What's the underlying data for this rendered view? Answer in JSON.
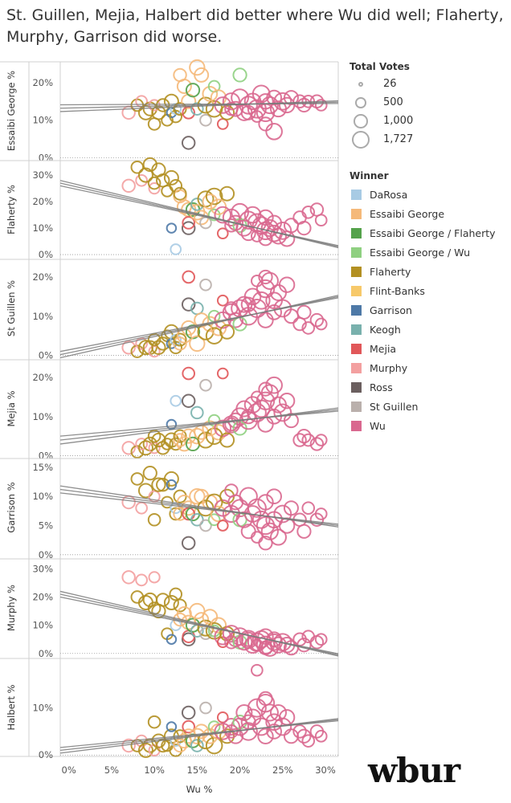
{
  "title": "St. Guillen, Mejia, Halbert did better where Wu did well; Flaherty, Murphy, Garrison did worse.",
  "brand": "wbur",
  "legend": {
    "size_title": "Total Votes",
    "sizes": [
      {
        "label": "26",
        "value": 26
      },
      {
        "label": "500",
        "value": 500
      },
      {
        "label": "1,000",
        "value": 1000
      },
      {
        "label": "1,727",
        "value": 1727
      }
    ],
    "winner_title": "Winner",
    "winners": [
      {
        "name": "DaRosa",
        "color": "#a8cbe4"
      },
      {
        "name": "Essaibi George",
        "color": "#f5b97a"
      },
      {
        "name": "Essaibi George / Flaherty",
        "color": "#54a24b"
      },
      {
        "name": "Essaibi George / Wu",
        "color": "#8fd081"
      },
      {
        "name": "Flaherty",
        "color": "#b39022"
      },
      {
        "name": "Flint-Banks",
        "color": "#f7c96a"
      },
      {
        "name": "Garrison",
        "color": "#4e79a7"
      },
      {
        "name": "Keogh",
        "color": "#79b1ad"
      },
      {
        "name": "Mejia",
        "color": "#e15759"
      },
      {
        "name": "Murphy",
        "color": "#f3a0a0"
      },
      {
        "name": "Ross",
        "color": "#6b5f5f"
      },
      {
        "name": "St Guillen",
        "color": "#bab0ac"
      },
      {
        "name": "Wu",
        "color": "#d9688f"
      }
    ]
  },
  "chart_data": {
    "type": "scatter",
    "xlabel": "Wu %",
    "x_ticks": [
      "0%",
      "5%",
      "10%",
      "15%",
      "20%",
      "25%",
      "30%"
    ],
    "x_tick_values": [
      0,
      5,
      10,
      15,
      20,
      25,
      30
    ],
    "xlim": [
      -1,
      31.5
    ],
    "panels": [
      {
        "ylabel": "Essaibi George %",
        "yticks": [
          "0%",
          "10%",
          "20%"
        ],
        "ytick_values": [
          0,
          10,
          20
        ],
        "ylim": [
          -0.5,
          25.5
        ],
        "trend": [
          [
            -1,
            13.2
          ],
          [
            31.5,
            14.8
          ]
        ],
        "spread": 0.9
      },
      {
        "ylabel": "Flaherty %",
        "yticks": [
          "0%",
          "10%",
          "20%",
          "30%"
        ],
        "ytick_values": [
          0,
          10,
          20,
          30
        ],
        "ylim": [
          -1.5,
          35.5
        ],
        "trend": [
          [
            -1,
            27.0
          ],
          [
            31.5,
            3.0
          ]
        ],
        "spread": 1.0
      },
      {
        "ylabel": "St Guillen %",
        "yticks": [
          "0%",
          "10%",
          "20%"
        ],
        "ytick_values": [
          0,
          10,
          20
        ],
        "ylim": [
          -0.5,
          24.5
        ],
        "trend": [
          [
            -1,
            0.2
          ],
          [
            31.5,
            15.0
          ]
        ],
        "spread": 0.8
      },
      {
        "ylabel": "Mejia %",
        "yticks": [
          "0%",
          "10%",
          "20%"
        ],
        "ytick_values": [
          0,
          10,
          20
        ],
        "ylim": [
          -0.5,
          24.5
        ],
        "trend": [
          [
            -1,
            4.0
          ],
          [
            31.5,
            11.8
          ]
        ],
        "spread": 1.0
      },
      {
        "ylabel": "Garrison %",
        "yticks": [
          "0%",
          "5%",
          "10%",
          "15%"
        ],
        "ytick_values": [
          0,
          5,
          10,
          15
        ],
        "ylim": [
          -0.3,
          16.5
        ],
        "trend": [
          [
            -1,
            11.2
          ],
          [
            31.5,
            5.0
          ]
        ],
        "spread": 0.6
      },
      {
        "ylabel": "Murphy %",
        "yticks": [
          "0%",
          "10%",
          "20%",
          "30%"
        ],
        "ytick_values": [
          0,
          10,
          20,
          30
        ],
        "ylim": [
          -1.2,
          33.5
        ],
        "trend": [
          [
            -1,
            21.0
          ],
          [
            31.5,
            -0.5
          ]
        ],
        "spread": 1.0
      },
      {
        "ylabel": "Halbert %",
        "yticks": [
          "0%",
          "10%"
        ],
        "ytick_values": [
          0,
          10
        ],
        "ylim": [
          -0.3,
          20.5
        ],
        "trend": [
          [
            -1,
            1.0
          ],
          [
            31.5,
            7.5
          ]
        ],
        "spread": 0.6
      }
    ],
    "points": [
      {
        "wu": 7.0,
        "votes": 700,
        "winner": "Murphy",
        "y": [
          12,
          26,
          2,
          2,
          9,
          27,
          2
        ]
      },
      {
        "wu": 8.0,
        "votes": 600,
        "winner": "Flaherty",
        "y": [
          14,
          33,
          1,
          1,
          13,
          20,
          2
        ]
      },
      {
        "wu": 8.5,
        "votes": 500,
        "winner": "Murphy",
        "y": [
          15,
          28,
          3,
          3,
          8,
          26,
          3
        ]
      },
      {
        "wu": 9.0,
        "votes": 900,
        "winner": "Flaherty",
        "y": [
          12,
          30,
          2,
          2,
          11,
          18,
          1
        ]
      },
      {
        "wu": 9.5,
        "votes": 800,
        "winner": "Flaherty",
        "y": [
          13,
          34,
          2,
          3,
          14,
          19,
          2
        ]
      },
      {
        "wu": 10.0,
        "votes": 450,
        "winner": "Murphy",
        "y": [
          14,
          25,
          1,
          2,
          10,
          27,
          1
        ]
      },
      {
        "wu": 10.0,
        "votes": 600,
        "winner": "Flaherty",
        "y": [
          9,
          27,
          4,
          5,
          6,
          16,
          7
        ]
      },
      {
        "wu": 10.5,
        "votes": 800,
        "winner": "Flaherty",
        "y": [
          12,
          32,
          2,
          4,
          12,
          15,
          3
        ]
      },
      {
        "wu": 11.0,
        "votes": 700,
        "winner": "Flaherty",
        "y": [
          14,
          28,
          3,
          2,
          12,
          19,
          2
        ]
      },
      {
        "wu": 11.5,
        "votes": 500,
        "winner": "Flaherty",
        "y": [
          10,
          24,
          5,
          3,
          9,
          7,
          2
        ]
      },
      {
        "wu": 12.0,
        "votes": 900,
        "winner": "Flaherty",
        "y": [
          15,
          29,
          6,
          4,
          13,
          18,
          4
        ]
      },
      {
        "wu": 12.0,
        "votes": 300,
        "winner": "Garrison",
        "y": [
          12,
          10,
          3,
          8,
          12,
          5,
          6
        ]
      },
      {
        "wu": 12.5,
        "votes": 600,
        "winner": "Flaherty",
        "y": [
          11,
          26,
          2,
          3,
          7,
          21,
          1
        ]
      },
      {
        "wu": 12.5,
        "votes": 400,
        "winner": "DaRosa",
        "y": [
          13,
          2,
          4,
          14,
          8,
          10,
          3
        ]
      },
      {
        "wu": 13.0,
        "votes": 700,
        "winner": "Essaibi George",
        "y": [
          22,
          22,
          3,
          4,
          7,
          12,
          2
        ]
      },
      {
        "wu": 13.0,
        "votes": 650,
        "winner": "Flaherty",
        "y": [
          13,
          23,
          4,
          5,
          10,
          17,
          4
        ]
      },
      {
        "wu": 13.5,
        "votes": 900,
        "winner": "Essaibi George",
        "y": [
          19,
          18,
          5,
          3,
          9,
          14,
          3
        ]
      },
      {
        "wu": 14.0,
        "votes": 700,
        "winner": "Ross",
        "y": [
          4,
          10,
          13,
          14,
          2,
          5,
          9
        ]
      },
      {
        "wu": 14.0,
        "votes": 900,
        "winner": "Essaibi George",
        "y": [
          15,
          17,
          7,
          5,
          8,
          11,
          4
        ]
      },
      {
        "wu": 14.0,
        "votes": 600,
        "winner": "Mejia",
        "y": [
          12,
          12,
          20,
          21,
          7,
          6,
          6
        ]
      },
      {
        "wu": 14.5,
        "votes": 800,
        "winner": "Essaibi George / Flaherty",
        "y": [
          18,
          17,
          6,
          3,
          7,
          10,
          3
        ]
      },
      {
        "wu": 15.0,
        "votes": 1100,
        "winner": "Essaibi George",
        "y": [
          24,
          16,
          3,
          5,
          10,
          15,
          4
        ]
      },
      {
        "wu": 15.0,
        "votes": 600,
        "winner": "Keogh",
        "y": [
          13,
          19,
          12,
          11,
          6,
          8,
          2
        ]
      },
      {
        "wu": 15.5,
        "votes": 900,
        "winner": "Essaibi George",
        "y": [
          22,
          14,
          9,
          6,
          10,
          12,
          5
        ]
      },
      {
        "wu": 16.0,
        "votes": 1200,
        "winner": "Flaherty",
        "y": [
          14,
          21,
          6,
          4,
          8,
          9,
          3
        ]
      },
      {
        "wu": 16.0,
        "votes": 500,
        "winner": "St Guillen",
        "y": [
          10,
          12,
          18,
          18,
          5,
          7,
          10
        ]
      },
      {
        "wu": 16.5,
        "votes": 1000,
        "winner": "Essaibi George",
        "y": [
          17,
          20,
          8,
          7,
          9,
          13,
          4
        ]
      },
      {
        "wu": 17.0,
        "votes": 1300,
        "winner": "Flaherty",
        "y": [
          13,
          22,
          5,
          5,
          9,
          8,
          2
        ]
      },
      {
        "wu": 17.0,
        "votes": 500,
        "winner": "Essaibi George / Wu",
        "y": [
          19,
          15,
          10,
          9,
          6,
          8,
          6
        ]
      },
      {
        "wu": 17.5,
        "votes": 1100,
        "winner": "Essaibi George",
        "y": [
          16,
          18,
          7,
          6,
          7,
          10,
          5
        ]
      },
      {
        "wu": 18.0,
        "votes": 1300,
        "winner": "Wu",
        "y": [
          14,
          15,
          9,
          7,
          8,
          6,
          5
        ]
      },
      {
        "wu": 18.0,
        "votes": 400,
        "winner": "Mejia",
        "y": [
          9,
          8,
          14,
          21,
          5,
          4,
          8
        ]
      },
      {
        "wu": 18.5,
        "votes": 900,
        "winner": "Flaherty",
        "y": [
          12,
          23,
          6,
          4,
          10,
          7,
          4
        ]
      },
      {
        "wu": 19.0,
        "votes": 1400,
        "winner": "Wu",
        "y": [
          15,
          14,
          11,
          8,
          7,
          7,
          6
        ]
      },
      {
        "wu": 19.5,
        "votes": 1000,
        "winner": "Wu",
        "y": [
          13,
          12,
          9,
          9,
          9,
          5,
          4
        ]
      },
      {
        "wu": 20.0,
        "votes": 1500,
        "winner": "Wu",
        "y": [
          16,
          16,
          12,
          10,
          8,
          6,
          6
        ]
      },
      {
        "wu": 20.0,
        "votes": 800,
        "winner": "Essaibi George / Wu",
        "y": [
          22,
          11,
          8,
          7,
          6,
          4,
          7
        ]
      },
      {
        "wu": 20.5,
        "votes": 1200,
        "winner": "Wu",
        "y": [
          12,
          10,
          13,
          12,
          6,
          4,
          9
        ]
      },
      {
        "wu": 21.0,
        "votes": 1600,
        "winner": "Wu",
        "y": [
          14,
          13,
          10,
          9,
          10,
          5,
          5
        ]
      },
      {
        "wu": 21.5,
        "votes": 1300,
        "winner": "Wu",
        "y": [
          15,
          15,
          15,
          13,
          7,
          3,
          8
        ]
      },
      {
        "wu": 22.0,
        "votes": 1727,
        "winner": "Wu",
        "y": [
          13,
          12,
          12,
          11,
          8,
          4,
          10
        ]
      },
      {
        "wu": 22.0,
        "votes": 500,
        "winner": "Wu",
        "y": [
          11,
          7,
          19,
          15,
          3,
          3,
          18
        ]
      },
      {
        "wu": 22.5,
        "votes": 1500,
        "winner": "Wu",
        "y": [
          17,
          11,
          14,
          12,
          6,
          5,
          6
        ]
      },
      {
        "wu": 23.0,
        "votes": 1600,
        "winner": "Wu",
        "y": [
          12,
          9,
          17,
          14,
          5,
          3,
          11
        ]
      },
      {
        "wu": 23.0,
        "votes": 1100,
        "winner": "Wu",
        "y": [
          15,
          14,
          9,
          8,
          9,
          6,
          4
        ]
      },
      {
        "wu": 23.5,
        "votes": 1400,
        "winner": "Wu",
        "y": [
          14,
          10,
          19,
          16,
          4,
          2,
          9
        ]
      },
      {
        "wu": 24.0,
        "votes": 1300,
        "winner": "Wu",
        "y": [
          7,
          8,
          14,
          18,
          6,
          4,
          7
        ]
      },
      {
        "wu": 24.0,
        "votes": 1000,
        "winner": "Wu",
        "y": [
          16,
          12,
          11,
          10,
          10,
          5,
          5
        ]
      },
      {
        "wu": 24.5,
        "votes": 1200,
        "winner": "Wu",
        "y": [
          13,
          7,
          16,
          13,
          3,
          3,
          9
        ]
      },
      {
        "wu": 25.0,
        "votes": 1500,
        "winner": "Wu",
        "y": [
          15,
          9,
          12,
          11,
          7,
          4,
          6
        ]
      },
      {
        "wu": 25.5,
        "votes": 1100,
        "winner": "Wu",
        "y": [
          14,
          6,
          18,
          14,
          5,
          3,
          8
        ]
      },
      {
        "wu": 26.0,
        "votes": 900,
        "winner": "Wu",
        "y": [
          16,
          11,
          10,
          9,
          8,
          2,
          4
        ]
      },
      {
        "wu": 27.0,
        "votes": 700,
        "winner": "Wu",
        "y": [
          15,
          14,
          8,
          4,
          6,
          5,
          5
        ]
      },
      {
        "wu": 27.5,
        "votes": 800,
        "winner": "Wu",
        "y": [
          14,
          10,
          11,
          5,
          4,
          3,
          4
        ]
      },
      {
        "wu": 28.0,
        "votes": 600,
        "winner": "Wu",
        "y": [
          15,
          16,
          7,
          4,
          8,
          6,
          3
        ]
      },
      {
        "wu": 29.0,
        "votes": 700,
        "winner": "Wu",
        "y": [
          15,
          17,
          9,
          3,
          6,
          4,
          5
        ]
      },
      {
        "wu": 29.5,
        "votes": 500,
        "winner": "Wu",
        "y": [
          14,
          13,
          8,
          4,
          7,
          5,
          4
        ]
      },
      {
        "wu": 21.0,
        "votes": 900,
        "winner": "Wu",
        "y": [
          12,
          8,
          13,
          10,
          4,
          5,
          7
        ]
      },
      {
        "wu": 19.0,
        "votes": 700,
        "winner": "Wu",
        "y": [
          13,
          11,
          12,
          8,
          11,
          4,
          5
        ]
      },
      {
        "wu": 23.0,
        "votes": 800,
        "winner": "Wu",
        "y": [
          9,
          6,
          20,
          17,
          2,
          2,
          12
        ]
      }
    ]
  }
}
